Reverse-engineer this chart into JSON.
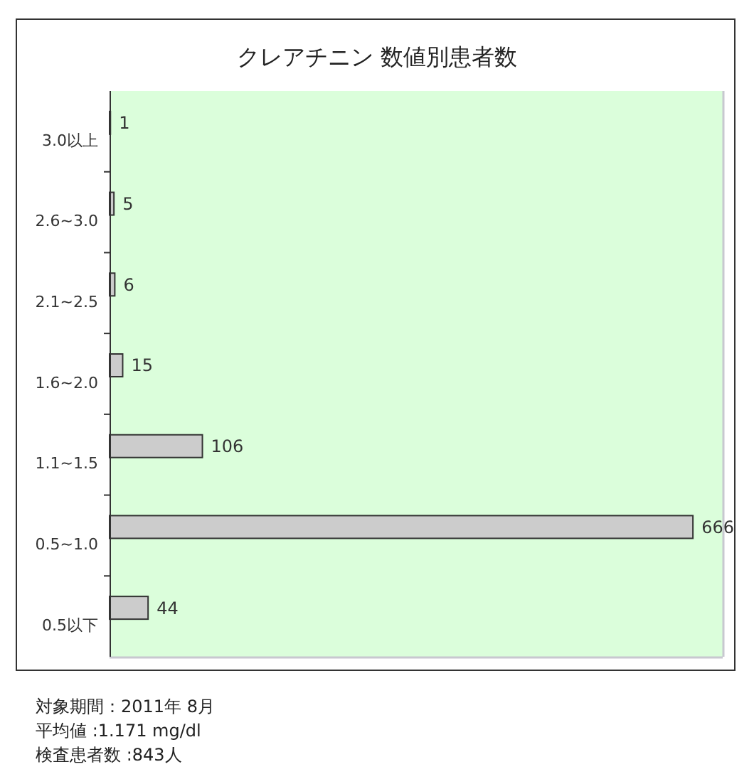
{
  "chart_data": {
    "type": "bar",
    "orientation": "horizontal",
    "title": "クレアチニン 数値別患者数",
    "categories": [
      "3.0以上",
      "2.6~3.0",
      "2.1~2.5",
      "1.6~2.0",
      "1.1~1.5",
      "0.5~1.0",
      "0.5以下"
    ],
    "values": [
      1,
      5,
      6,
      15,
      106,
      666,
      44
    ],
    "color": "#cccccc",
    "data_labels": true,
    "xlim": [
      0,
      700
    ],
    "tick_labels": "y",
    "annotations": [
      "対象期間：2011年 8月",
      "平均値 :1.171 mg/dl",
      "検査患者数 :843人"
    ]
  }
}
